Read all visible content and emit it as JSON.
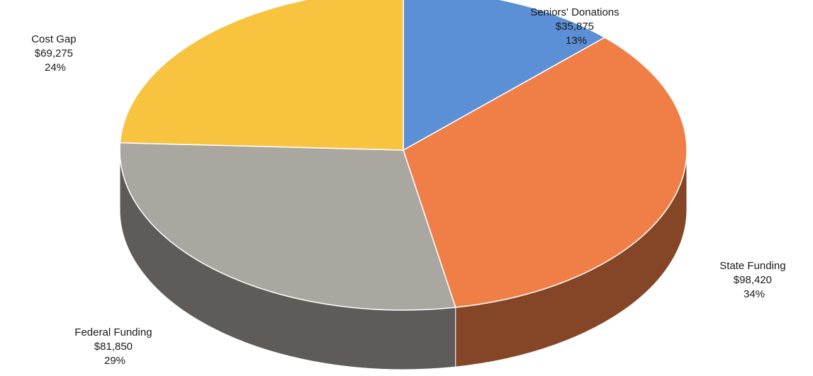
{
  "chart_data": {
    "type": "pie",
    "style": "3d",
    "title": "",
    "slices": [
      {
        "label": "Seniors' Donations",
        "value": 35875,
        "value_label": "$35,875",
        "percent_label": "13%",
        "color": "#5B8FD6"
      },
      {
        "label": "State Funding",
        "value": 98420,
        "value_label": "$98,420",
        "percent_label": "34%",
        "color": "#F07F47"
      },
      {
        "label": "Federal Funding",
        "value": 81850,
        "value_label": "$81,850",
        "percent_label": "29%",
        "color": "#AAA6A0"
      },
      {
        "label": "Cost Gap",
        "value": 69275,
        "value_label": "$69,275",
        "percent_label": "24%",
        "color": "#F8C43F"
      }
    ],
    "legend": "none"
  }
}
